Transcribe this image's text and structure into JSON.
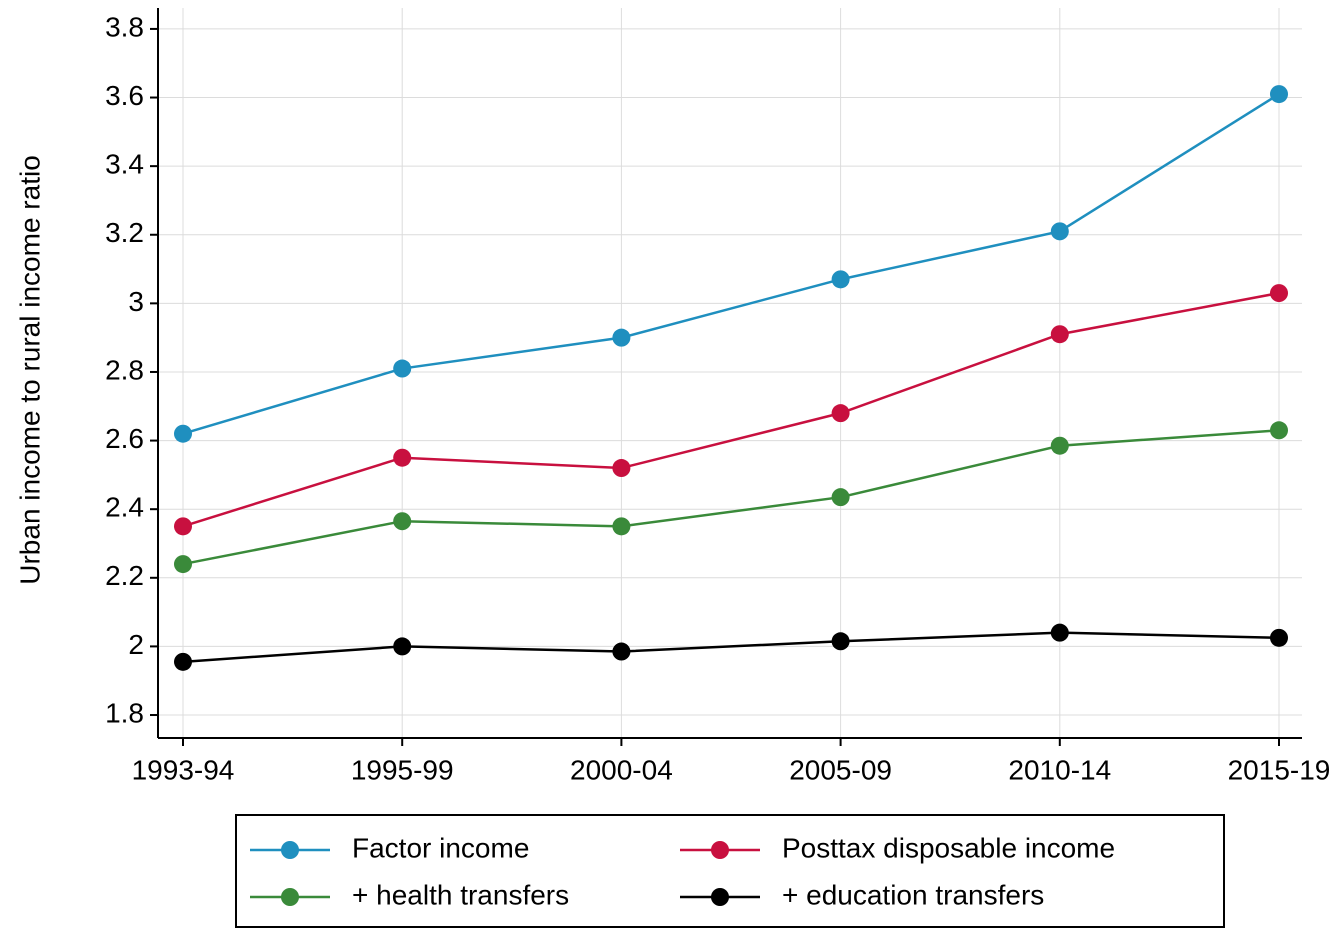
{
  "chart_data": {
    "type": "line",
    "y_label": "Urban income to rural income ratio",
    "categories": [
      "1993-94",
      "1995-99",
      "2000-04",
      "2005-09",
      "2010-14",
      "2015-19"
    ],
    "series": [
      {
        "name": "Factor income",
        "color": "#1f8fbf",
        "values": [
          2.62,
          2.81,
          2.9,
          3.07,
          3.21,
          3.61
        ]
      },
      {
        "name": "Posttax disposable income",
        "color": "#c8103f",
        "values": [
          2.35,
          2.55,
          2.52,
          2.68,
          2.91,
          3.03
        ]
      },
      {
        "name": "+ health transfers",
        "color": "#3a8a3a",
        "values": [
          2.24,
          2.365,
          2.35,
          2.435,
          2.585,
          2.63
        ]
      },
      {
        "name": "+ education transfers",
        "color": "#000000",
        "values": [
          1.955,
          2.0,
          1.985,
          2.015,
          2.04,
          2.025
        ]
      }
    ],
    "ylim": [
      1.733,
      3.861
    ],
    "yticks": [
      1.8,
      2,
      2.2,
      2.4,
      2.6,
      2.8,
      3,
      3.2,
      3.4,
      3.6,
      3.8
    ],
    "grid": true
  }
}
